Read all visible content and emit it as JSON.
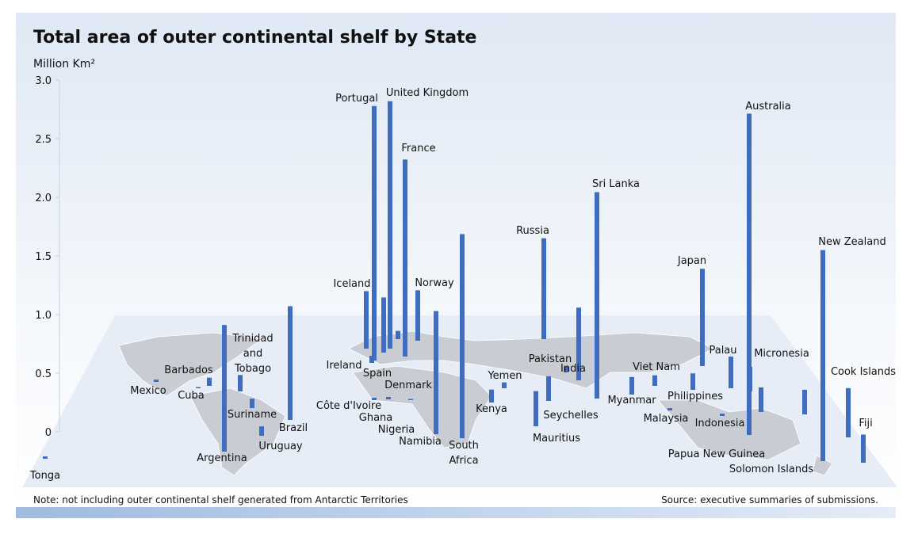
{
  "chart_data": {
    "type": "bar",
    "title": "Total area of outer continental shelf by State",
    "y_label": "Million Km²",
    "note": "Note: not including outer continental shelf generated from Antarctic Territories",
    "source": "Source: executive summaries of submissions.",
    "color": "#3d6cc0",
    "ylim": [
      0,
      3
    ],
    "yticks": [
      0,
      0.5,
      {
        "value": 1,
        "label": "1.0"
      },
      1.5,
      {
        "value": 2,
        "label": "2.0"
      },
      2.5,
      {
        "value": 3,
        "label": "3.0"
      }
    ],
    "categories": [
      "Tonga",
      "Mexico",
      "Cuba",
      "Barbados",
      "Trinidad and Tobago",
      "Argentina",
      "Suriname",
      "Uruguay",
      "Brazil",
      "Iceland",
      "Portugal",
      "United Kingdom",
      "Spain",
      "Ireland",
      "France",
      "Denmark",
      "Norway",
      "Côte d'Ivoire",
      "Ghana",
      "Nigeria",
      "Namibia",
      "South Africa",
      "Kenya",
      "Yemen",
      "Russia",
      "Pakistan",
      "India",
      "Seychelles",
      "Mauritius",
      "Sri Lanka",
      "Myanmar",
      "Viet Nam",
      "Malaysia",
      "Philippines",
      "Japan",
      "Palau",
      "Indonesia",
      "Micronesia",
      "Papua New Guinea",
      "Australia",
      "Solomon Islands",
      "New Zealand",
      "Cook Islands",
      "Fiji"
    ],
    "values": [
      0.02,
      0.02,
      0.01,
      0.07,
      0.14,
      1.08,
      0.08,
      0.08,
      0.97,
      0.49,
      2.17,
      2.11,
      0.47,
      0.06,
      1.68,
      0.07,
      0.43,
      0.02,
      0.02,
      0.01,
      1.05,
      1.74,
      0.11,
      0.05,
      0.86,
      0.05,
      0.62,
      0.21,
      0.3,
      1.76,
      0.15,
      0.09,
      0.02,
      0.14,
      0.83,
      0.27,
      0.02,
      0.21,
      0.21,
      2.74,
      0.21,
      1.8,
      0.42,
      0.24
    ]
  }
}
